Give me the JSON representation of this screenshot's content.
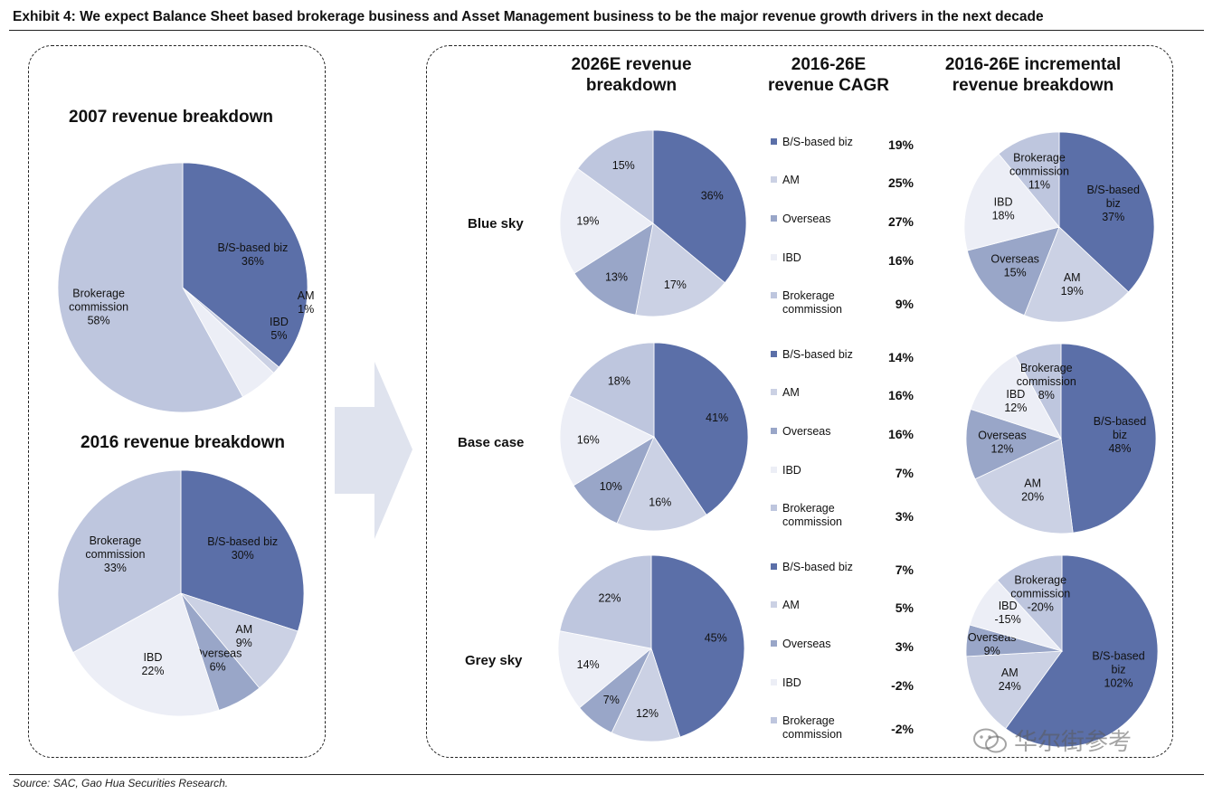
{
  "exhibit_title": "Exhibit 4: We expect Balance Sheet based brokerage business and Asset Management business to be the major revenue growth drivers in the next decade",
  "source": "Source: SAC, Gao Hua Securities Research.",
  "watermark": "华尔街参考",
  "colors": {
    "bs": "#5b6fa8",
    "am": "#cbd1e4",
    "overseas": "#99a6c8",
    "ibd": "#eceef6",
    "brokerage": "#bec6de",
    "border": "#222222"
  },
  "headers": {
    "breakdown_2026": "2026E revenue\nbreakdown",
    "cagr": "2016-26E\nrevenue CAGR",
    "incremental": "2016-26E incremental\nrevenue breakdown"
  },
  "scenarios": [
    "Blue sky",
    "Base case",
    "Grey sky"
  ],
  "legend": [
    {
      "label": "B/S-based biz",
      "color_key": "bs"
    },
    {
      "label": "AM",
      "color_key": "am"
    },
    {
      "label": "Overseas",
      "color_key": "overseas"
    },
    {
      "label": "IBD",
      "color_key": "ibd"
    },
    {
      "label": "Brokerage\ncommission",
      "color_key": "brokerage"
    }
  ],
  "cagr": [
    [
      "19%",
      "25%",
      "27%",
      "16%",
      "9%"
    ],
    [
      "14%",
      "16%",
      "16%",
      "7%",
      "3%"
    ],
    [
      "7%",
      "5%",
      "3%",
      "-2%",
      "-2%"
    ]
  ],
  "chart_data": [
    {
      "type": "pie",
      "title": "2007 revenue breakdown",
      "slices": [
        {
          "label": "B/S-based biz",
          "value": 36,
          "text": "B/S-based biz\n36%",
          "color_key": "bs"
        },
        {
          "label": "AM",
          "value": 1,
          "text": "AM\n1%",
          "color_key": "am"
        },
        {
          "label": "IBD",
          "value": 5,
          "text": "IBD\n5%",
          "color_key": "ibd"
        },
        {
          "label": "Brokerage commission",
          "value": 58,
          "text": "Brokerage\ncommission\n58%",
          "color_key": "brokerage"
        }
      ]
    },
    {
      "type": "pie",
      "title": "2016 revenue breakdown",
      "slices": [
        {
          "label": "B/S-based biz",
          "value": 30,
          "text": "B/S-based biz\n30%",
          "color_key": "bs"
        },
        {
          "label": "AM",
          "value": 9,
          "text": "AM\n9%",
          "color_key": "am"
        },
        {
          "label": "Overseas",
          "value": 6,
          "text": "Overseas\n6%",
          "color_key": "overseas"
        },
        {
          "label": "IBD",
          "value": 22,
          "text": "IBD\n22%",
          "color_key": "ibd"
        },
        {
          "label": "Brokerage commission",
          "value": 33,
          "text": "Brokerage\ncommission\n33%",
          "color_key": "brokerage"
        }
      ]
    },
    {
      "type": "pie",
      "title": "2026E revenue breakdown - Blue sky",
      "slices": [
        {
          "label": "B/S-based biz",
          "value": 36,
          "text": "36%",
          "color_key": "bs"
        },
        {
          "label": "AM",
          "value": 17,
          "text": "17%",
          "color_key": "am"
        },
        {
          "label": "Overseas",
          "value": 13,
          "text": "13%",
          "color_key": "overseas"
        },
        {
          "label": "IBD",
          "value": 19,
          "text": "19%",
          "color_key": "ibd"
        },
        {
          "label": "Brokerage commission",
          "value": 15,
          "text": "15%",
          "color_key": "brokerage"
        }
      ]
    },
    {
      "type": "pie",
      "title": "2026E revenue breakdown - Base case",
      "slices": [
        {
          "label": "B/S-based biz",
          "value": 41,
          "text": "41%",
          "color_key": "bs"
        },
        {
          "label": "AM",
          "value": 16,
          "text": "16%",
          "color_key": "am"
        },
        {
          "label": "Overseas",
          "value": 10,
          "text": "10%",
          "color_key": "overseas"
        },
        {
          "label": "IBD",
          "value": 16,
          "text": "16%",
          "color_key": "ibd"
        },
        {
          "label": "Brokerage commission",
          "value": 18,
          "text": "18%",
          "color_key": "brokerage"
        }
      ]
    },
    {
      "type": "pie",
      "title": "2026E revenue breakdown - Grey sky",
      "slices": [
        {
          "label": "B/S-based biz",
          "value": 45,
          "text": "45%",
          "color_key": "bs"
        },
        {
          "label": "AM",
          "value": 12,
          "text": "12%",
          "color_key": "am"
        },
        {
          "label": "Overseas",
          "value": 7,
          "text": "7%",
          "color_key": "overseas"
        },
        {
          "label": "IBD",
          "value": 14,
          "text": "14%",
          "color_key": "ibd"
        },
        {
          "label": "Brokerage commission",
          "value": 22,
          "text": "22%",
          "color_key": "brokerage"
        }
      ]
    },
    {
      "type": "pie",
      "title": "2016-26E incremental revenue breakdown - Blue sky",
      "slices": [
        {
          "label": "B/S-based biz",
          "value": 37,
          "text": "B/S-based\nbiz\n37%",
          "color_key": "bs"
        },
        {
          "label": "AM",
          "value": 19,
          "text": "AM\n19%",
          "color_key": "am"
        },
        {
          "label": "Overseas",
          "value": 15,
          "text": "Overseas\n15%",
          "color_key": "overseas"
        },
        {
          "label": "IBD",
          "value": 18,
          "text": "IBD\n18%",
          "color_key": "ibd"
        },
        {
          "label": "Brokerage commission",
          "value": 11,
          "text": "Brokerage\ncommission\n11%",
          "color_key": "brokerage"
        }
      ]
    },
    {
      "type": "pie",
      "title": "2016-26E incremental revenue breakdown - Base case",
      "slices": [
        {
          "label": "B/S-based biz",
          "value": 48,
          "text": "B/S-based\nbiz\n48%",
          "color_key": "bs"
        },
        {
          "label": "AM",
          "value": 20,
          "text": "AM\n20%",
          "color_key": "am"
        },
        {
          "label": "Overseas",
          "value": 12,
          "text": "Overseas\n12%",
          "color_key": "overseas"
        },
        {
          "label": "IBD",
          "value": 12,
          "text": "IBD\n12%",
          "color_key": "ibd"
        },
        {
          "label": "Brokerage commission",
          "value": 8,
          "text": "Brokerage\ncommission\n8%",
          "color_key": "brokerage"
        }
      ]
    },
    {
      "type": "pie",
      "title": "2016-26E incremental revenue breakdown - Grey sky",
      "slices": [
        {
          "label": "B/S-based biz",
          "value": 102,
          "text": "B/S-based\nbiz\n102%",
          "color_key": "bs"
        },
        {
          "label": "AM",
          "value": 24,
          "text": "AM\n24%",
          "color_key": "am"
        },
        {
          "label": "Overseas",
          "value": 9,
          "text": "Overseas\n9%",
          "color_key": "overseas"
        },
        {
          "label": "IBD",
          "value": -15,
          "text": "IBD\n-15%",
          "color_key": "ibd"
        },
        {
          "label": "Brokerage commission",
          "value": -20,
          "text": "Brokerage\ncommission\n-20%",
          "color_key": "brokerage"
        }
      ]
    }
  ]
}
